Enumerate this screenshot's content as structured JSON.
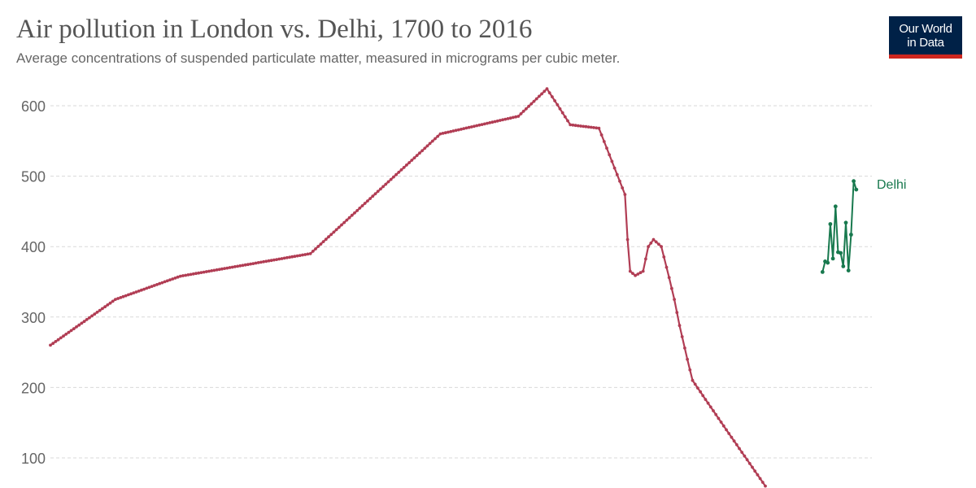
{
  "header": {
    "title": "Air pollution in London vs. Delhi, 1700 to 2016",
    "subtitle": "Average concentrations of suspended particulate matter, measured in micrograms per cubic meter.",
    "logo_line1": "Our World",
    "logo_line2": "in Data"
  },
  "colors": {
    "london": "#b13d54",
    "delhi": "#18794e",
    "grid": "#d9d9d9",
    "tick": "#666666"
  },
  "chart_data": {
    "type": "line",
    "title": "Air pollution in London vs. Delhi, 1700 to 2016",
    "xlabel": "",
    "ylabel": "",
    "xlim": [
      1700,
      2016
    ],
    "ylim": [
      55,
      625
    ],
    "yticks": [
      100,
      200,
      300,
      400,
      500,
      600
    ],
    "ytick_labels": [
      "100",
      "200",
      "300",
      "400",
      "500",
      "600"
    ],
    "grid": true,
    "series": [
      {
        "name": "London",
        "label": "",
        "keypoints": [
          [
            1700,
            260
          ],
          [
            1725,
            325
          ],
          [
            1750,
            358
          ],
          [
            1800,
            390
          ],
          [
            1850,
            560
          ],
          [
            1880,
            585
          ],
          [
            1891,
            624
          ],
          [
            1900,
            573
          ],
          [
            1911,
            568
          ],
          [
            1921,
            474
          ],
          [
            1922,
            410
          ],
          [
            1923,
            365
          ],
          [
            1925,
            359
          ],
          [
            1928,
            365
          ],
          [
            1930,
            400
          ],
          [
            1932,
            410
          ],
          [
            1935,
            400
          ],
          [
            1938,
            356
          ],
          [
            1940,
            325
          ],
          [
            1942,
            288
          ],
          [
            1945,
            240
          ],
          [
            1947,
            210
          ],
          [
            1960,
            140
          ],
          [
            1975,
            60
          ]
        ]
      },
      {
        "name": "Delhi",
        "label": "Delhi",
        "points": [
          [
            1997,
            364
          ],
          [
            1998,
            379
          ],
          [
            1999,
            377
          ],
          [
            2000,
            432
          ],
          [
            2001,
            383
          ],
          [
            2002,
            457
          ],
          [
            2003,
            392
          ],
          [
            2004,
            391
          ],
          [
            2005,
            372
          ],
          [
            2006,
            434
          ],
          [
            2007,
            366
          ],
          [
            2008,
            417
          ],
          [
            2009,
            493
          ],
          [
            2010,
            481
          ]
        ]
      }
    ]
  }
}
